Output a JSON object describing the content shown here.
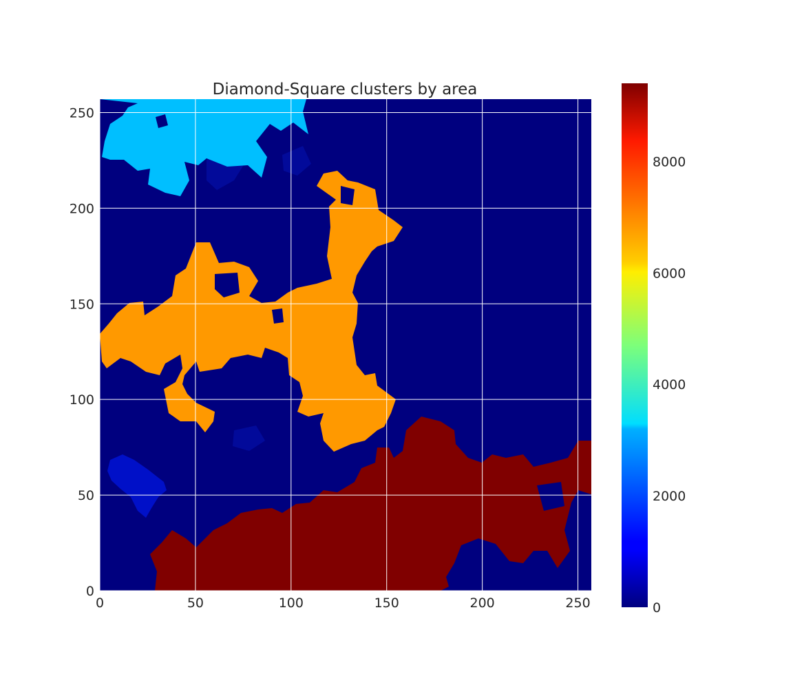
{
  "chart_data": {
    "type": "heatmap",
    "title": "Diamond-Square clusters by area",
    "xlabel": "",
    "ylabel": "",
    "xlim": [
      0,
      257
    ],
    "ylim": [
      0,
      257
    ],
    "grid": true,
    "x_ticks": [
      0,
      50,
      100,
      150,
      200,
      250
    ],
    "y_ticks": [
      0,
      50,
      100,
      150,
      200,
      250
    ],
    "x_tick_labels": [
      "0",
      "50",
      "100",
      "150",
      "200",
      "250"
    ],
    "y_tick_labels": [
      "0",
      "50",
      "100",
      "150",
      "200",
      "250"
    ],
    "colormap": "jet",
    "colorbar": {
      "min": 0,
      "max": 9400,
      "ticks": [
        0,
        2000,
        4000,
        6000,
        8000
      ],
      "tick_labels": [
        "0",
        "2000",
        "4000",
        "6000",
        "8000"
      ]
    },
    "clusters": [
      {
        "region": "top-left",
        "area": 2900,
        "color": "#00bfff"
      },
      {
        "region": "center",
        "area": 6700,
        "color": "#ff9900"
      },
      {
        "region": "bottom-right",
        "area": 9400,
        "color": "#800000"
      },
      {
        "region": "left",
        "area": 200,
        "color": "#0010c8"
      },
      {
        "region": "background",
        "area": 0,
        "color": "#00007f"
      }
    ]
  }
}
